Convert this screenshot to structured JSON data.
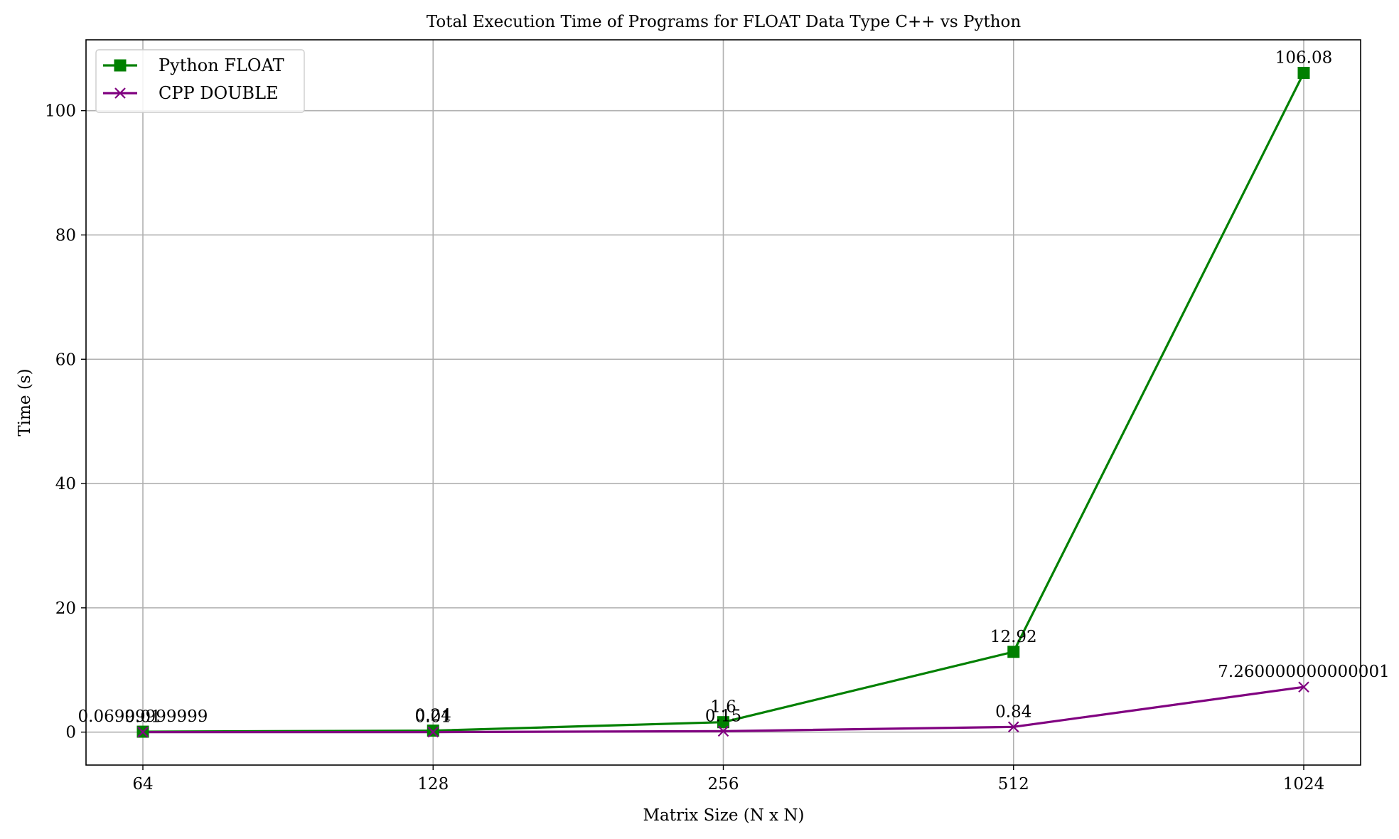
{
  "chart_data": {
    "type": "line",
    "title": "Total Execution Time of Programs for FLOAT Data Type C++ vs Python",
    "xlabel": "Matrix Size (N x N)",
    "ylabel": "Time (s)",
    "categories": [
      "64",
      "128",
      "256",
      "512",
      "1024"
    ],
    "ylim": [
      -5.3,
      111.4
    ],
    "yticks": [
      0,
      20,
      40,
      60,
      80,
      100
    ],
    "grid": true,
    "legend_position": "top-left",
    "series": [
      {
        "name": "Python FLOAT",
        "color": "#008000",
        "marker": "square",
        "values": [
          0.06999999999,
          0.24,
          1.6,
          12.92,
          106.08
        ],
        "labels": [
          "0.06999999999",
          "0.24",
          "1.6",
          "12.92",
          "106.08"
        ]
      },
      {
        "name": "CPP DOUBLE",
        "color": "#800080",
        "marker": "x",
        "values": [
          0.01,
          0.01,
          0.15,
          0.84,
          7.260000000000001
        ],
        "labels": [
          "0.01",
          "0.01",
          "0.15",
          "0.84",
          "7.260000000000001"
        ]
      }
    ]
  }
}
